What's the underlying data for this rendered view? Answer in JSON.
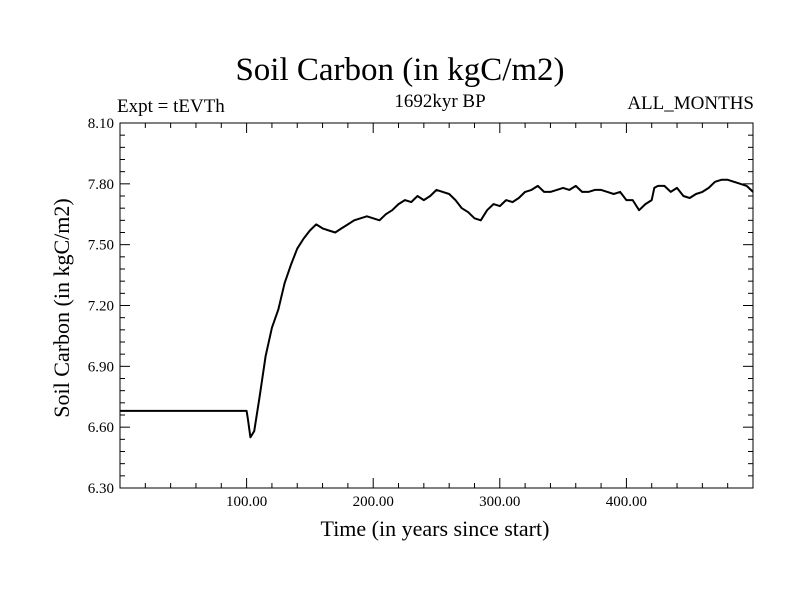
{
  "chart_data": {
    "type": "line",
    "title": "Soil Carbon (in kgC/m2)",
    "subtitle_left": "Expt = tEVTh",
    "subtitle_center": "1692kyr BP",
    "subtitle_right": "ALL_MONTHS",
    "xlabel": "Time (in years since start)",
    "ylabel": "Soil Carbon (in kgC/m2)",
    "xlim": [
      0,
      500
    ],
    "ylim": [
      6.3,
      8.1
    ],
    "x_ticks": [
      100,
      200,
      300,
      400
    ],
    "x_tick_labels": [
      "100.00",
      "200.00",
      "300.00",
      "400.00"
    ],
    "y_ticks": [
      6.3,
      6.6,
      6.9,
      7.2,
      7.5,
      7.8,
      8.1
    ],
    "y_tick_labels": [
      "6.30",
      "6.60",
      "6.90",
      "7.20",
      "7.50",
      "7.80",
      "8.10"
    ],
    "series": [
      {
        "name": "Soil Carbon",
        "x": [
          0,
          100,
          101,
          103,
          106,
          110,
          115,
          120,
          125,
          130,
          135,
          140,
          145,
          150,
          155,
          160,
          165,
          170,
          175,
          180,
          185,
          190,
          195,
          200,
          205,
          210,
          215,
          220,
          225,
          230,
          235,
          240,
          245,
          250,
          255,
          260,
          265,
          270,
          275,
          280,
          285,
          290,
          295,
          300,
          305,
          310,
          315,
          320,
          325,
          330,
          335,
          340,
          345,
          350,
          355,
          360,
          365,
          370,
          375,
          380,
          385,
          390,
          395,
          400,
          405,
          410,
          415,
          420,
          422,
          425,
          430,
          435,
          440,
          445,
          450,
          455,
          460,
          465,
          470,
          475,
          480,
          485,
          490,
          495,
          500
        ],
        "values": [
          6.68,
          6.68,
          6.64,
          6.55,
          6.58,
          6.74,
          6.95,
          7.09,
          7.18,
          7.31,
          7.4,
          7.48,
          7.53,
          7.57,
          7.6,
          7.58,
          7.57,
          7.56,
          7.58,
          7.6,
          7.62,
          7.63,
          7.64,
          7.63,
          7.62,
          7.65,
          7.67,
          7.7,
          7.72,
          7.71,
          7.74,
          7.72,
          7.74,
          7.77,
          7.76,
          7.75,
          7.72,
          7.68,
          7.66,
          7.63,
          7.62,
          7.67,
          7.7,
          7.69,
          7.72,
          7.71,
          7.73,
          7.76,
          7.77,
          7.79,
          7.76,
          7.76,
          7.77,
          7.78,
          7.77,
          7.79,
          7.76,
          7.76,
          7.77,
          7.77,
          7.76,
          7.75,
          7.76,
          7.72,
          7.72,
          7.67,
          7.7,
          7.72,
          7.78,
          7.79,
          7.79,
          7.76,
          7.78,
          7.74,
          7.73,
          7.75,
          7.76,
          7.78,
          7.81,
          7.82,
          7.82,
          7.81,
          7.8,
          7.79,
          7.76
        ]
      }
    ]
  }
}
